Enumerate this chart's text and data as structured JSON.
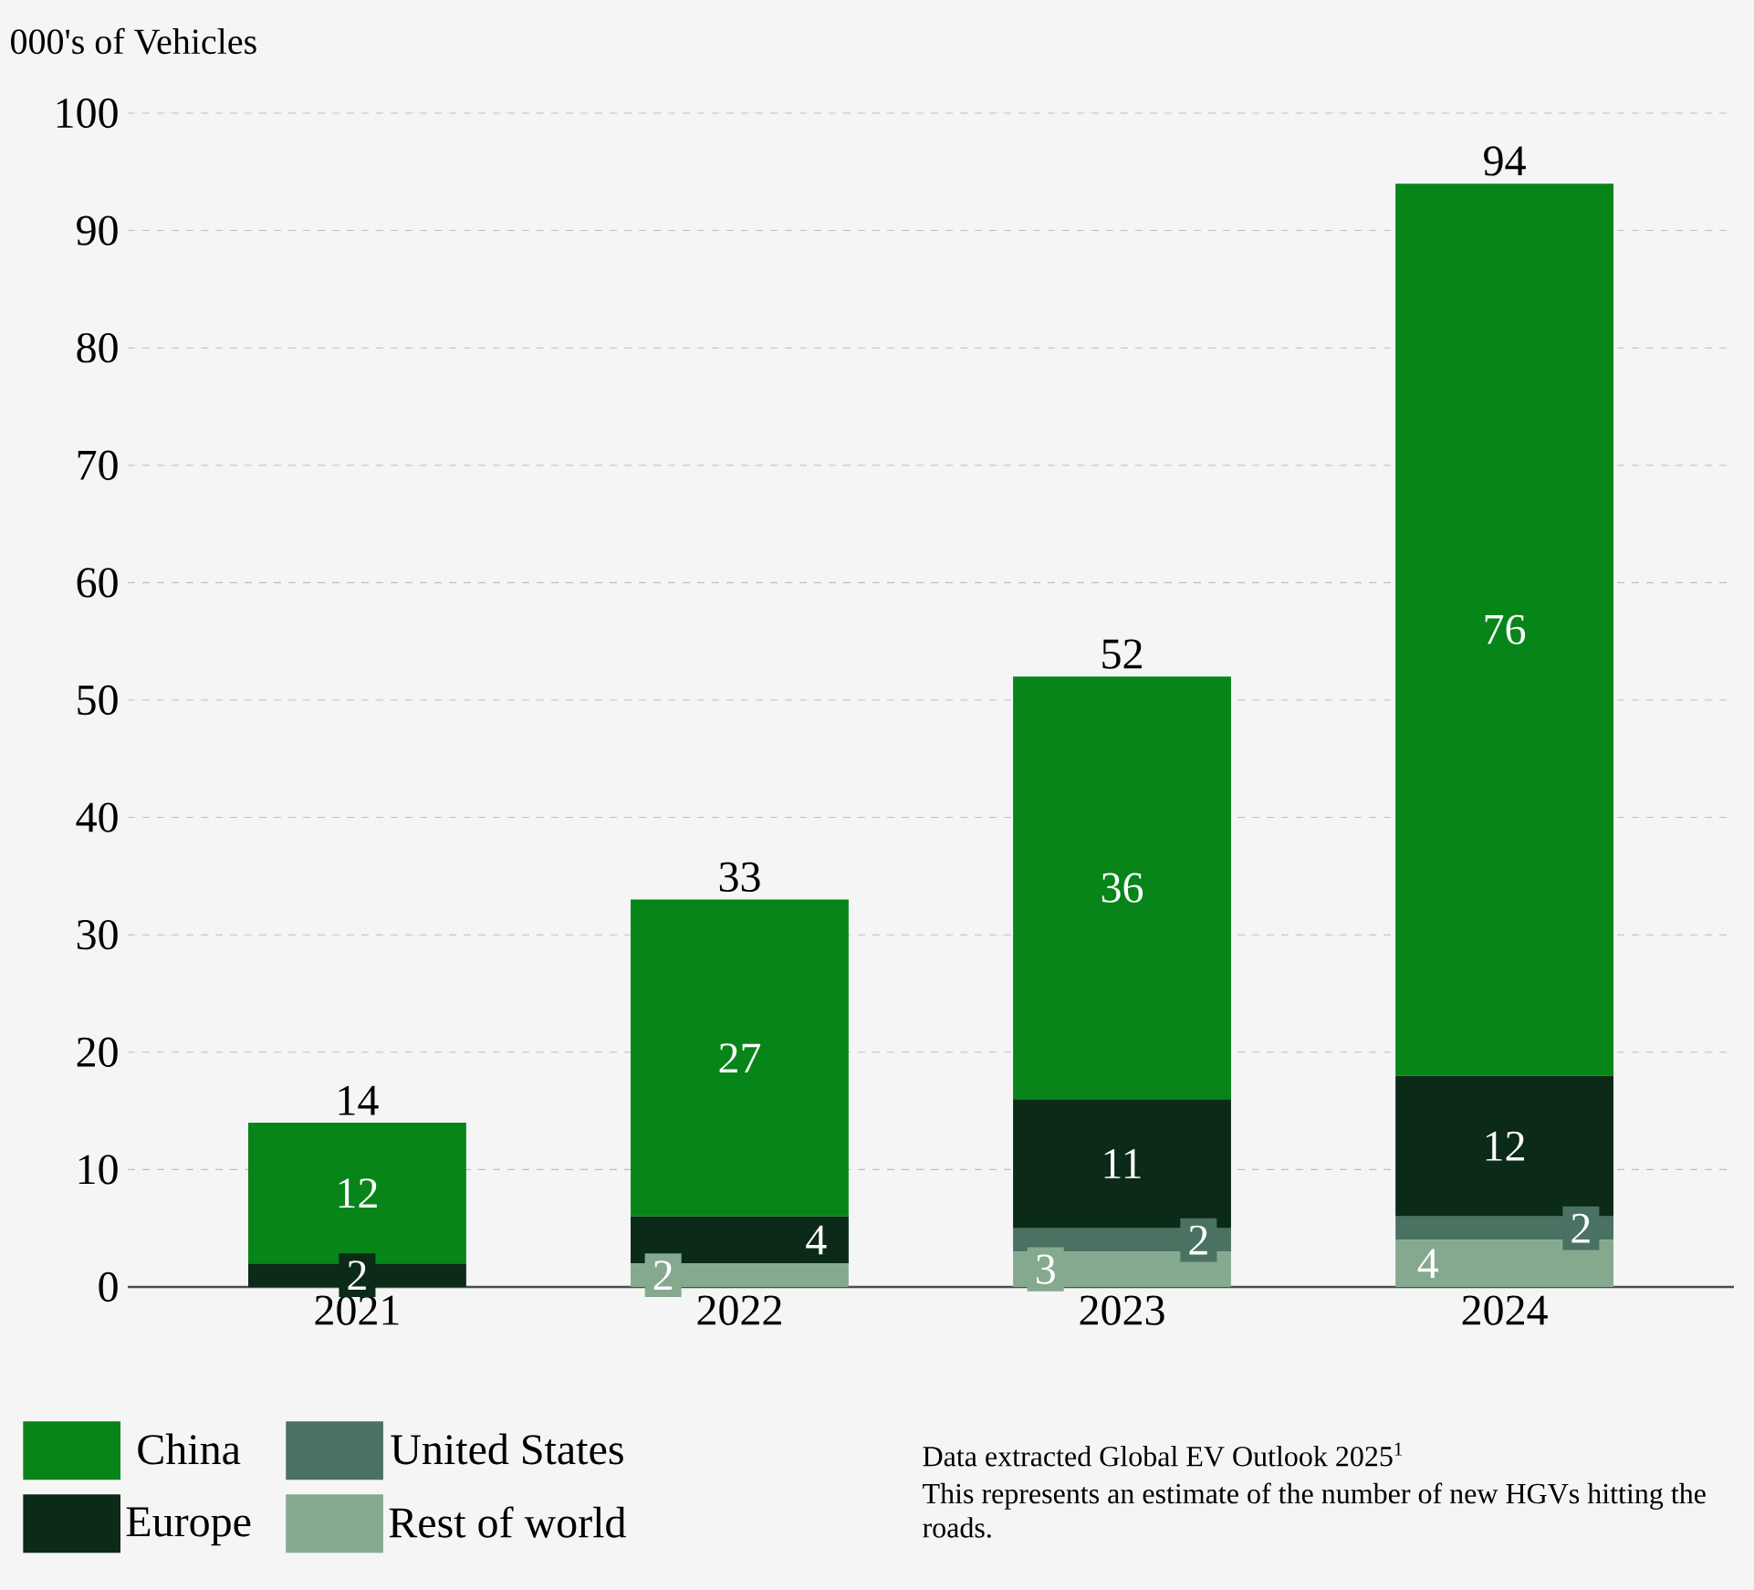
{
  "chart_data": {
    "type": "bar",
    "stacked": true,
    "ylabel": "000's of Vehicles",
    "categories": [
      "2021",
      "2022",
      "2023",
      "2024"
    ],
    "series": [
      {
        "name": "Rest of world",
        "color": "#85a98f",
        "values": [
          0,
          2,
          3,
          4
        ],
        "value_labels": [
          null,
          "2",
          "3",
          "4"
        ]
      },
      {
        "name": "United States",
        "color": "#4a7262",
        "values": [
          0,
          0,
          2,
          2
        ],
        "value_labels": [
          null,
          null,
          "2",
          "2"
        ]
      },
      {
        "name": "Europe",
        "color": "#0b2a17",
        "values": [
          2,
          4,
          11,
          12
        ],
        "value_labels": [
          "2",
          "4",
          "11",
          "12"
        ]
      },
      {
        "name": "China",
        "color": "#078519",
        "values": [
          12,
          27,
          36,
          76
        ],
        "value_labels": [
          "12",
          "27",
          "36",
          "76"
        ]
      }
    ],
    "totals": [
      "14",
      "33",
      "52",
      "94"
    ],
    "ylim": [
      0,
      100
    ],
    "yticks": [
      0,
      10,
      20,
      30,
      40,
      50,
      60,
      70,
      80,
      90,
      100
    ],
    "grid": "y",
    "legend": "bottom",
    "annotations": [
      "Data extracted Global EV Outlook 2025$^{1}$",
      "This represents an estimate of the number of new HGVs hitting the roads."
    ]
  }
}
